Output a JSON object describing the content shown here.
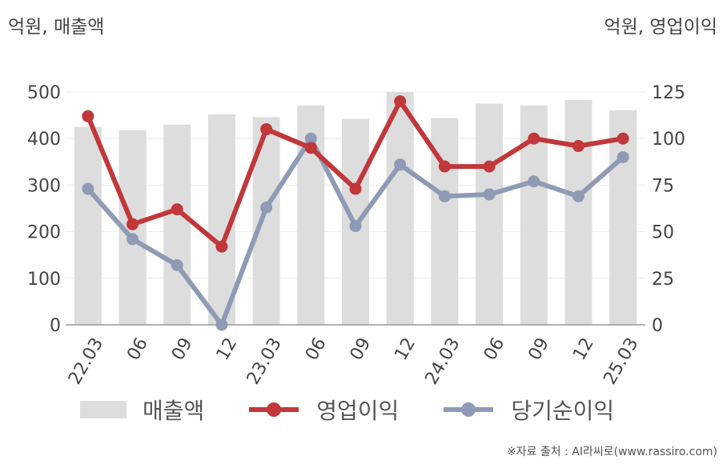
{
  "header": {
    "left_unit": "억원, 매출액",
    "right_unit": "억원, 영업이익"
  },
  "chart_data": {
    "type": "bar",
    "categories": [
      "22.03",
      "06",
      "09",
      "12",
      "23.03",
      "06",
      "09",
      "12",
      "24.03",
      "06",
      "09",
      "12",
      "25.03"
    ],
    "series": [
      {
        "name": "매출액",
        "type": "bar",
        "axis": "left",
        "values": [
          425,
          418,
          430,
          452,
          446,
          471,
          442,
          500,
          444,
          475,
          471,
          483,
          461
        ]
      },
      {
        "name": "영업이익",
        "type": "line",
        "axis": "right",
        "values": [
          112,
          54,
          62,
          42,
          105,
          95,
          73,
          120,
          85,
          85,
          100,
          96,
          100
        ]
      },
      {
        "name": "당기순이익",
        "type": "line",
        "axis": "right",
        "values": [
          73,
          46,
          32,
          0,
          63,
          100,
          53,
          86,
          69,
          70,
          77,
          69,
          90
        ]
      }
    ],
    "y_left": {
      "range": [
        0,
        500
      ],
      "ticks": [
        "0",
        "100",
        "200",
        "300",
        "400",
        "500"
      ]
    },
    "y_right": {
      "range": [
        0,
        125
      ],
      "ticks": [
        "0",
        "25",
        "50",
        "75",
        "100",
        "125"
      ]
    },
    "colors": {
      "bar": "#dddddd",
      "operating_profit": "#c1373a",
      "net_income": "#8f9bb5",
      "grid": "#eeeeee",
      "axis": "#999999"
    },
    "grid": true,
    "legend": "bottom"
  },
  "legend": {
    "items": [
      "매출액",
      "영업이익",
      "당기순이익"
    ]
  },
  "footer": {
    "source": "※자료 출처 : AI라씨로(www.rassiro.com)"
  }
}
